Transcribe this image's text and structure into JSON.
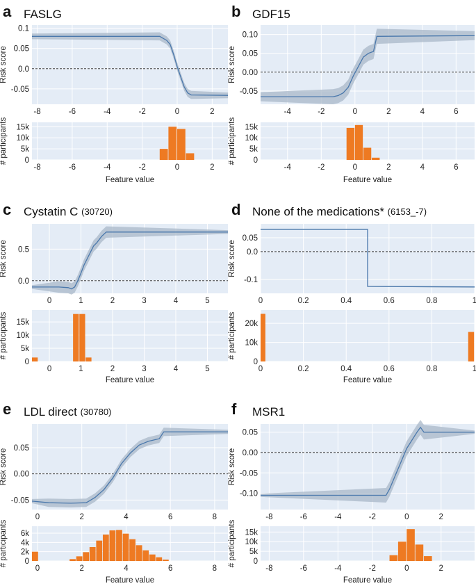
{
  "figure_labels": {
    "risk_score": "Risk score",
    "participants": "# participants",
    "feature_value": "Feature value"
  },
  "colors": {
    "panel_bg": "#e4ecf6",
    "line": "#4a78ac",
    "band": "#a9b8c8",
    "bar": "#ee7a22"
  },
  "chart_data": [
    {
      "letter": "a",
      "title": "FASLG",
      "title_code": "",
      "type": "line",
      "xlabel": "Feature value",
      "ylabel": "Risk score",
      "xlim": [
        -8.3,
        2.9
      ],
      "ylim": [
        -0.088,
        0.108
      ],
      "xticks": [
        -8,
        -6,
        -4,
        -2,
        0,
        2
      ],
      "yticks": [
        -0.05,
        0.0,
        0.05,
        0.1
      ],
      "ytick_labels": [
        "-0.05",
        "0.0",
        "0.05",
        "0.1"
      ],
      "risk_curve": [
        [
          -8.3,
          0.08
        ],
        [
          -1.0,
          0.08
        ],
        [
          -0.8,
          0.075
        ],
        [
          -0.6,
          0.07
        ],
        [
          -0.4,
          0.06
        ],
        [
          -0.2,
          0.035
        ],
        [
          0.0,
          0.005
        ],
        [
          0.2,
          -0.02
        ],
        [
          0.4,
          -0.045
        ],
        [
          0.6,
          -0.06
        ],
        [
          0.8,
          -0.065
        ],
        [
          2.9,
          -0.066
        ]
      ],
      "risk_band": [
        0.007,
        0.01
      ],
      "hist": {
        "type": "bar",
        "bins": [
          -1.25,
          -0.75,
          -0.25,
          0.25,
          0.75
        ],
        "counts": [
          0,
          5000,
          15000,
          14000,
          3000
        ],
        "width": 0.5,
        "ylim": [
          0,
          17000
        ],
        "yticks": [
          0,
          5000,
          10000,
          15000
        ],
        "ytick_labels": [
          "0",
          "5k",
          "10k",
          "15k"
        ]
      }
    },
    {
      "letter": "b",
      "title": "GDF15",
      "title_code": "",
      "type": "line",
      "xlabel": "Feature value",
      "ylabel": "Risk score",
      "xlim": [
        -5.6,
        7.1
      ],
      "ylim": [
        -0.085,
        0.125
      ],
      "xticks": [
        -4,
        -2,
        0,
        2,
        4,
        6
      ],
      "yticks": [
        -0.05,
        0.0,
        0.05,
        0.1
      ],
      "ytick_labels": [
        "-0.05",
        "0.00",
        "0.05",
        "0.10"
      ],
      "risk_curve": [
        [
          -5.6,
          -0.065
        ],
        [
          -1.3,
          -0.065
        ],
        [
          -1.0,
          -0.062
        ],
        [
          -0.7,
          -0.055
        ],
        [
          -0.4,
          -0.04
        ],
        [
          -0.1,
          -0.01
        ],
        [
          0.2,
          0.015
        ],
        [
          0.5,
          0.04
        ],
        [
          0.8,
          0.05
        ],
        [
          1.1,
          0.055
        ],
        [
          1.3,
          0.095
        ],
        [
          7.1,
          0.097
        ]
      ],
      "risk_band": [
        0.012,
        0.02
      ],
      "hist": {
        "type": "bar",
        "bins": [
          -0.75,
          -0.25,
          0.25,
          0.75,
          1.25
        ],
        "counts": [
          0,
          14500,
          15800,
          5500,
          1000
        ],
        "width": 0.5,
        "ylim": [
          0,
          17000
        ],
        "yticks": [
          0,
          5000,
          10000,
          15000
        ],
        "ytick_labels": [
          "0",
          "5k",
          "10k",
          "15k"
        ]
      }
    },
    {
      "letter": "c",
      "title": "Cystatin C",
      "title_code": "(30720)",
      "type": "line",
      "xlabel": "Feature value",
      "ylabel": "Risk score",
      "xlim": [
        -0.55,
        5.65
      ],
      "ylim": [
        -0.2,
        0.9
      ],
      "xticks": [
        0,
        1,
        2,
        3,
        4,
        5
      ],
      "yticks": [
        0.0,
        0.5
      ],
      "ytick_labels": [
        "0.0",
        "0.5"
      ],
      "risk_curve": [
        [
          -0.55,
          -0.1
        ],
        [
          0.3,
          -0.1
        ],
        [
          0.6,
          -0.11
        ],
        [
          0.7,
          -0.13
        ],
        [
          0.8,
          -0.1
        ],
        [
          0.9,
          0.0
        ],
        [
          1.0,
          0.12
        ],
        [
          1.1,
          0.25
        ],
        [
          1.2,
          0.35
        ],
        [
          1.3,
          0.45
        ],
        [
          1.4,
          0.55
        ],
        [
          1.5,
          0.6
        ],
        [
          1.65,
          0.7
        ],
        [
          1.8,
          0.77
        ],
        [
          5.65,
          0.77
        ]
      ],
      "risk_band": [
        0.03,
        0.09
      ],
      "hist": {
        "type": "bar",
        "bins": [
          -0.45,
          0.85,
          1.05,
          1.25
        ],
        "counts": [
          1500,
          18000,
          18000,
          1500
        ],
        "width": 0.2,
        "ylim": [
          0,
          19500
        ],
        "yticks": [
          0,
          5000,
          10000,
          15000
        ],
        "ytick_labels": [
          "0",
          "5k",
          "10k",
          "15k"
        ]
      }
    },
    {
      "letter": "d",
      "title": "None of the medications*",
      "title_code": "(6153_-7)",
      "type": "line",
      "xlabel": "Feature value",
      "ylabel": "Risk score",
      "xlim": [
        0,
        1
      ],
      "ylim": [
        -0.15,
        0.1
      ],
      "xticks": [
        0,
        0.2,
        0.4,
        0.6,
        0.8,
        1
      ],
      "xtick_labels": [
        "0",
        "0.2",
        "0.4",
        "0.6",
        "0.8",
        "1"
      ],
      "yticks": [
        -0.1,
        0.0,
        0.05
      ],
      "ytick_labels": [
        "-0.1",
        "0.0",
        "0.05"
      ],
      "risk_curve": [
        [
          0,
          0.08
        ],
        [
          0.5,
          0.08
        ],
        [
          0.5,
          -0.125
        ],
        [
          1.0,
          -0.127
        ]
      ],
      "risk_band": [
        0.002,
        0.002
      ],
      "hist": {
        "type": "bar",
        "bins": [
          0.01,
          0.985
        ],
        "counts": [
          25000,
          15500
        ],
        "width": 0.03,
        "ylim": [
          0,
          27000
        ],
        "yticks": [
          0,
          10000,
          20000
        ],
        "ytick_labels": [
          "0",
          "10k",
          "20k"
        ]
      }
    },
    {
      "letter": "e",
      "title": "LDL direct",
      "title_code": "(30780)",
      "type": "line",
      "xlabel": "Feature value",
      "ylabel": "Risk score",
      "xlim": [
        -0.25,
        8.6
      ],
      "ylim": [
        -0.068,
        0.095
      ],
      "xticks": [
        0,
        2,
        4,
        6,
        8
      ],
      "yticks": [
        -0.05,
        0.0,
        0.05
      ],
      "ytick_labels": [
        "-0.05",
        "0.00",
        "0.05"
      ],
      "risk_curve": [
        [
          -0.25,
          -0.052
        ],
        [
          0.5,
          -0.055
        ],
        [
          1.5,
          -0.056
        ],
        [
          2.2,
          -0.055
        ],
        [
          2.6,
          -0.045
        ],
        [
          3.0,
          -0.03
        ],
        [
          3.4,
          -0.008
        ],
        [
          3.8,
          0.02
        ],
        [
          4.2,
          0.04
        ],
        [
          4.6,
          0.055
        ],
        [
          5.0,
          0.062
        ],
        [
          5.5,
          0.067
        ],
        [
          5.7,
          0.08
        ],
        [
          8.6,
          0.08
        ]
      ],
      "risk_band": [
        0.004,
        0.008
      ],
      "hist": {
        "type": "bar",
        "bins": [
          -0.1,
          1.6,
          1.9,
          2.2,
          2.5,
          2.8,
          3.1,
          3.4,
          3.7,
          4.0,
          4.3,
          4.6,
          4.9,
          5.2,
          5.5,
          5.8
        ],
        "counts": [
          2000,
          400,
          1000,
          1900,
          3000,
          4400,
          5700,
          6600,
          6700,
          5900,
          4700,
          3400,
          2300,
          1400,
          800,
          300
        ],
        "width": 0.3,
        "ylim": [
          0,
          7500
        ],
        "yticks": [
          0,
          2000,
          4000,
          6000
        ],
        "ytick_labels": [
          "0",
          "2k",
          "4k",
          "6k"
        ]
      }
    },
    {
      "letter": "f",
      "title": "MSR1",
      "title_code": "",
      "type": "line",
      "xlabel": "Feature value",
      "ylabel": "Risk score",
      "xlim": [
        -8.5,
        3.95
      ],
      "ylim": [
        -0.14,
        0.07
      ],
      "xticks": [
        -8,
        -6,
        -4,
        -2,
        0,
        2
      ],
      "yticks": [
        -0.1,
        -0.05,
        0.0,
        0.05
      ],
      "ytick_labels": [
        "-0.10",
        "-0.05",
        "0.00",
        "0.05"
      ],
      "risk_curve": [
        [
          -8.5,
          -0.105
        ],
        [
          -1.2,
          -0.105
        ],
        [
          -1.0,
          -0.09
        ],
        [
          -0.8,
          -0.07
        ],
        [
          -0.6,
          -0.05
        ],
        [
          -0.4,
          -0.03
        ],
        [
          -0.2,
          -0.01
        ],
        [
          0.0,
          0.01
        ],
        [
          0.3,
          0.03
        ],
        [
          0.6,
          0.05
        ],
        [
          0.8,
          0.062
        ],
        [
          1.0,
          0.05
        ],
        [
          3.95,
          0.05
        ]
      ],
      "risk_band": [
        0.004,
        0.018
      ],
      "hist": {
        "type": "bar",
        "bins": [
          -1.25,
          -0.75,
          -0.25,
          0.25,
          0.75,
          1.25
        ],
        "counts": [
          0,
          3000,
          10000,
          16500,
          8500,
          2500
        ],
        "width": 0.5,
        "ylim": [
          0,
          18000
        ],
        "yticks": [
          0,
          5000,
          10000,
          15000
        ],
        "ytick_labels": [
          "0",
          "5k",
          "10k",
          "15k"
        ]
      }
    }
  ]
}
